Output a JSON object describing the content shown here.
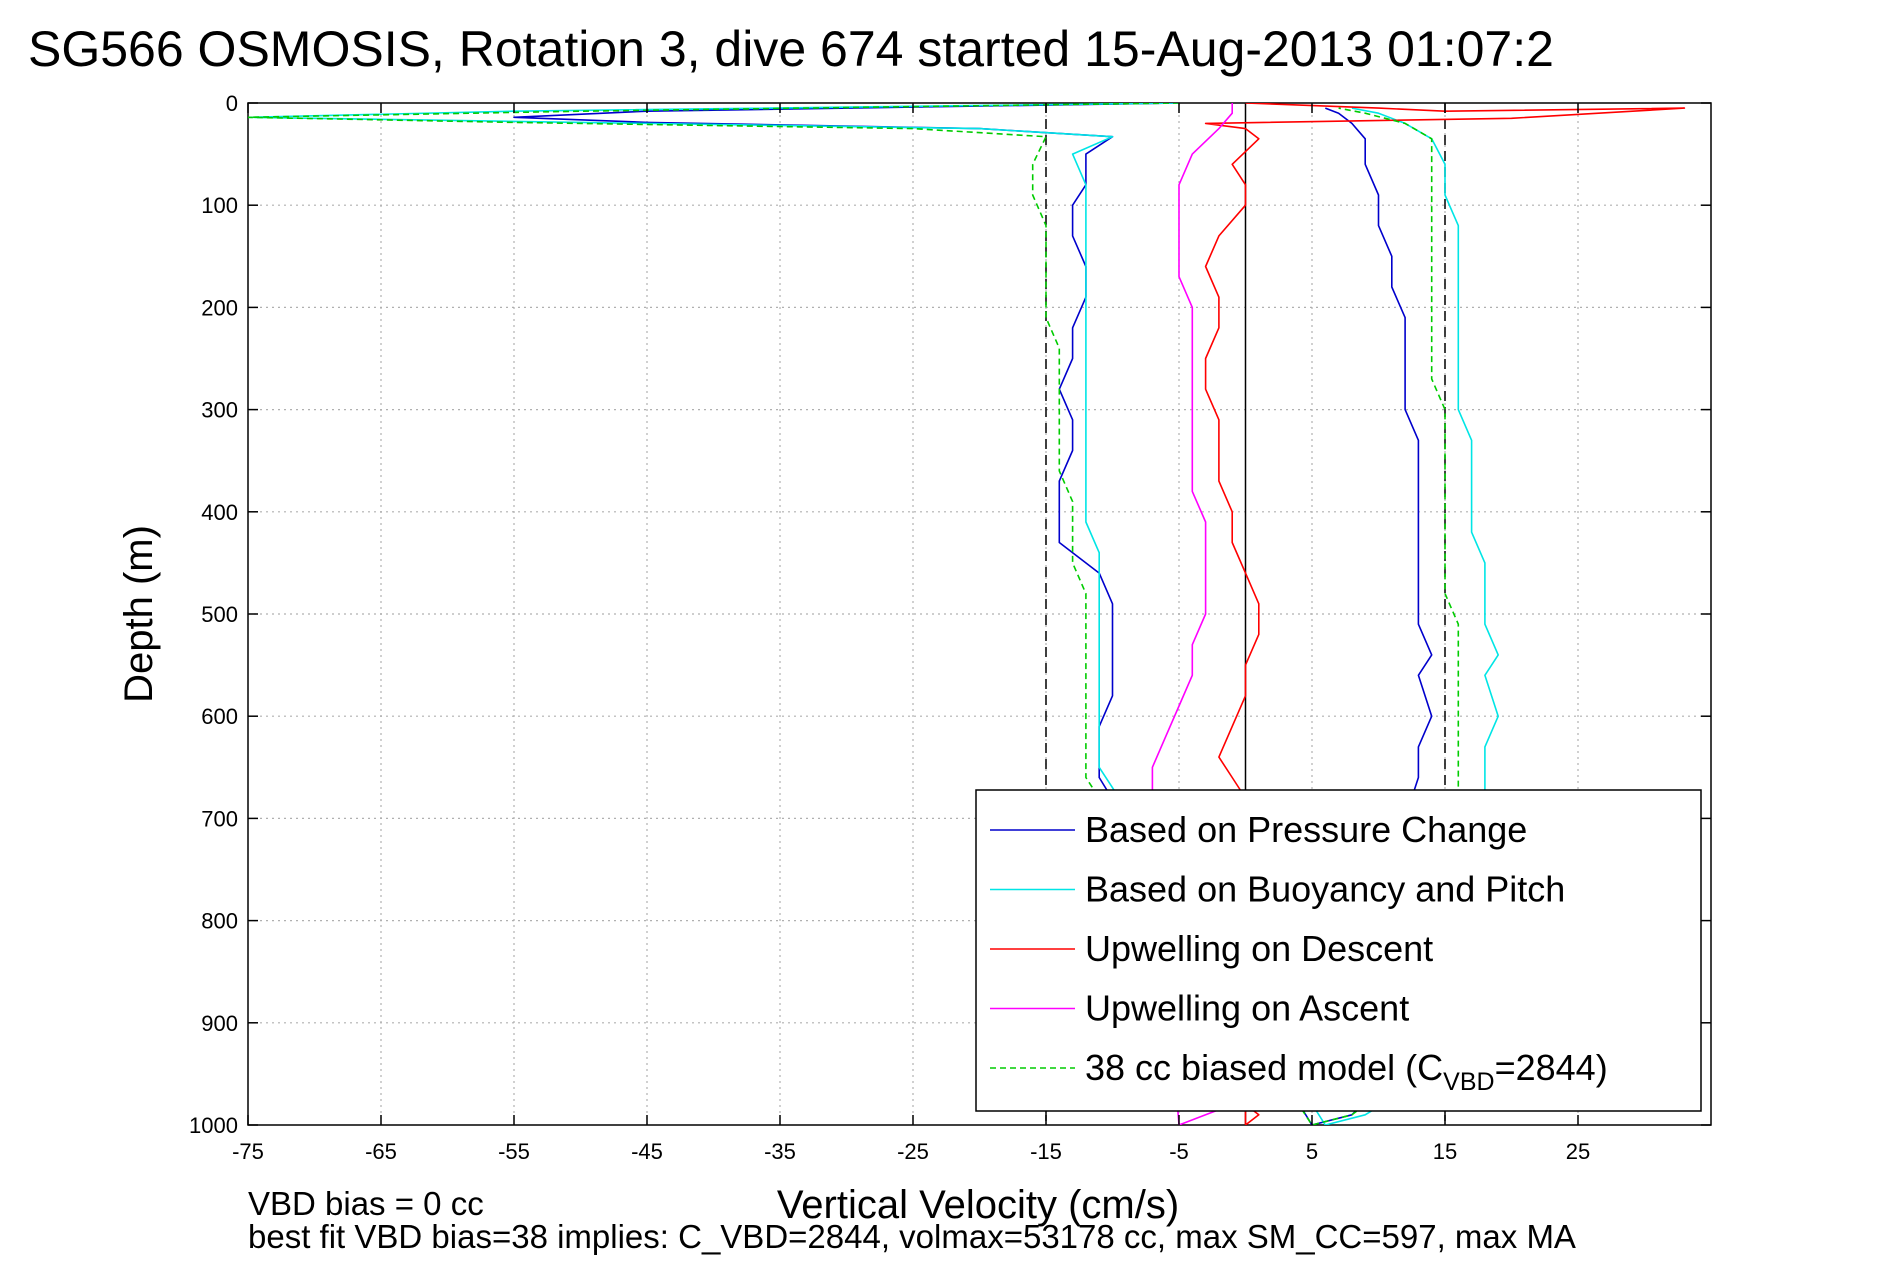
{
  "chart_data": {
    "type": "line",
    "title": "SG566 OSMOSIS, Rotation 3, dive 674 started 15-Aug-2013 01:07:2",
    "xlabel": "Vertical Velocity (cm/s)",
    "ylabel": "Depth (m)",
    "xlim": [
      -75,
      35
    ],
    "ylim": [
      0,
      1000
    ],
    "y_reversed": true,
    "grid": true,
    "x_ticks": [
      -75,
      -65,
      -55,
      -45,
      -35,
      -25,
      -15,
      -5,
      5,
      15,
      25
    ],
    "x_tick_labels": [
      "-75",
      "-65",
      "-55",
      "-45",
      "-35",
      "-25",
      "-15",
      "-5",
      "5",
      "15",
      "25"
    ],
    "y_ticks": [
      0,
      100,
      200,
      300,
      400,
      500,
      600,
      700,
      800,
      900,
      1000
    ],
    "y_tick_labels": [
      "0",
      "100",
      "200",
      "300",
      "400",
      "500",
      "600",
      "700",
      "800",
      "900",
      "1000"
    ],
    "reference_lines": [
      {
        "x": -15,
        "style": "dashed",
        "color": "#000000"
      },
      {
        "x": 0,
        "style": "solid",
        "color": "#000000"
      },
      {
        "x": 15,
        "style": "dashed",
        "color": "#000000"
      }
    ],
    "legend_position": "bottom-right",
    "series": [
      {
        "name": "Based on Pressure Change",
        "color": "#0000cc",
        "style": "solid",
        "points": [
          [
            -5,
            0
          ],
          [
            -45,
            8
          ],
          [
            -55,
            14
          ],
          [
            -45,
            19
          ],
          [
            -20,
            25
          ],
          [
            -10,
            33
          ],
          [
            -12,
            50
          ],
          [
            -12,
            80
          ],
          [
            -13,
            100
          ],
          [
            -13,
            130
          ],
          [
            -12,
            160
          ],
          [
            -12,
            190
          ],
          [
            -13,
            220
          ],
          [
            -13,
            250
          ],
          [
            -14,
            280
          ],
          [
            -13,
            310
          ],
          [
            -13,
            340
          ],
          [
            -14,
            370
          ],
          [
            -14,
            400
          ],
          [
            -14,
            430
          ],
          [
            -11,
            460
          ],
          [
            -10,
            490
          ],
          [
            -10,
            520
          ],
          [
            -10,
            550
          ],
          [
            -10,
            580
          ],
          [
            -11,
            610
          ],
          [
            -11,
            640
          ],
          [
            -11,
            660
          ],
          [
            5,
            1000
          ],
          [
            8,
            990
          ],
          [
            11,
            950
          ],
          [
            12,
            700
          ],
          [
            13,
            660
          ],
          [
            13,
            630
          ],
          [
            14,
            600
          ],
          [
            13,
            560
          ],
          [
            14,
            540
          ],
          [
            13,
            510
          ],
          [
            13,
            480
          ],
          [
            13,
            450
          ],
          [
            13,
            420
          ],
          [
            13,
            390
          ],
          [
            13,
            360
          ],
          [
            13,
            330
          ],
          [
            12,
            300
          ],
          [
            12,
            270
          ],
          [
            12,
            240
          ],
          [
            12,
            210
          ],
          [
            11,
            180
          ],
          [
            11,
            150
          ],
          [
            10,
            120
          ],
          [
            10,
            90
          ],
          [
            9,
            60
          ],
          [
            9,
            35
          ],
          [
            8,
            20
          ],
          [
            7,
            10
          ],
          [
            6,
            5
          ]
        ]
      },
      {
        "name": "Based on Buoyancy and Pitch",
        "color": "#00e5e5",
        "style": "solid",
        "points": [
          [
            -5,
            0
          ],
          [
            -55,
            8
          ],
          [
            -75,
            14
          ],
          [
            -50,
            19
          ],
          [
            -20,
            25
          ],
          [
            -10,
            33
          ],
          [
            -13,
            50
          ],
          [
            -12,
            80
          ],
          [
            -12,
            110
          ],
          [
            -12,
            140
          ],
          [
            -12,
            170
          ],
          [
            -12,
            200
          ],
          [
            -12,
            230
          ],
          [
            -12,
            260
          ],
          [
            -12,
            290
          ],
          [
            -12,
            320
          ],
          [
            -12,
            350
          ],
          [
            -12,
            380
          ],
          [
            -12,
            410
          ],
          [
            -11,
            440
          ],
          [
            -11,
            470
          ],
          [
            -11,
            500
          ],
          [
            -11,
            530
          ],
          [
            -11,
            560
          ],
          [
            -11,
            590
          ],
          [
            -11,
            620
          ],
          [
            -11,
            650
          ],
          [
            -10,
            670
          ],
          [
            6,
            1000
          ],
          [
            9,
            990
          ],
          [
            14,
            950
          ],
          [
            18,
            700
          ],
          [
            18,
            660
          ],
          [
            18,
            630
          ],
          [
            19,
            600
          ],
          [
            18,
            560
          ],
          [
            19,
            540
          ],
          [
            18,
            510
          ],
          [
            18,
            480
          ],
          [
            18,
            450
          ],
          [
            17,
            420
          ],
          [
            17,
            390
          ],
          [
            17,
            360
          ],
          [
            17,
            330
          ],
          [
            16,
            300
          ],
          [
            16,
            270
          ],
          [
            16,
            240
          ],
          [
            16,
            210
          ],
          [
            16,
            180
          ],
          [
            16,
            150
          ],
          [
            16,
            120
          ],
          [
            15,
            90
          ],
          [
            15,
            60
          ],
          [
            14,
            35
          ],
          [
            12,
            20
          ],
          [
            10,
            10
          ],
          [
            8,
            5
          ]
        ]
      },
      {
        "name": "Upwelling on Descent",
        "color": "#ff0000",
        "style": "solid",
        "points": [
          [
            0,
            0
          ],
          [
            10,
            5
          ],
          [
            15,
            8
          ],
          [
            33,
            5
          ],
          [
            20,
            15
          ],
          [
            -3,
            20
          ],
          [
            0,
            25
          ],
          [
            1,
            35
          ],
          [
            -1,
            60
          ],
          [
            0,
            80
          ],
          [
            0,
            100
          ],
          [
            -2,
            130
          ],
          [
            -3,
            160
          ],
          [
            -2,
            190
          ],
          [
            -2,
            220
          ],
          [
            -3,
            250
          ],
          [
            -3,
            280
          ],
          [
            -2,
            310
          ],
          [
            -2,
            340
          ],
          [
            -2,
            370
          ],
          [
            -1,
            400
          ],
          [
            -1,
            430
          ],
          [
            0,
            460
          ],
          [
            1,
            490
          ],
          [
            1,
            520
          ],
          [
            0,
            550
          ],
          [
            0,
            580
          ],
          [
            -1,
            610
          ],
          [
            -2,
            640
          ],
          [
            -1,
            660
          ],
          [
            0,
            680
          ],
          [
            0,
            1000
          ],
          [
            1,
            990
          ],
          [
            0,
            980
          ]
        ]
      },
      {
        "name": "Upwelling on Ascent",
        "color": "#ff00ff",
        "style": "solid",
        "points": [
          [
            -1,
            0
          ],
          [
            -1,
            10
          ],
          [
            -2,
            25
          ],
          [
            -4,
            50
          ],
          [
            -5,
            80
          ],
          [
            -5,
            110
          ],
          [
            -5,
            140
          ],
          [
            -5,
            170
          ],
          [
            -4,
            200
          ],
          [
            -4,
            230
          ],
          [
            -4,
            260
          ],
          [
            -4,
            290
          ],
          [
            -4,
            320
          ],
          [
            -4,
            350
          ],
          [
            -4,
            380
          ],
          [
            -3,
            410
          ],
          [
            -3,
            440
          ],
          [
            -3,
            470
          ],
          [
            -3,
            500
          ],
          [
            -4,
            530
          ],
          [
            -4,
            560
          ],
          [
            -5,
            590
          ],
          [
            -6,
            620
          ],
          [
            -7,
            650
          ],
          [
            -7,
            680
          ],
          [
            -5,
            1000
          ],
          [
            -3,
            990
          ],
          [
            -1,
            980
          ]
        ]
      },
      {
        "name": "38 cc biased model (C_VBD=2844)",
        "legend_text": "38 cc biased model (C",
        "legend_subscript": "VBD",
        "legend_suffix": "=2844)",
        "color": "#00cc00",
        "style": "dashed",
        "points": [
          [
            -5,
            0
          ],
          [
            -50,
            8
          ],
          [
            -75,
            14
          ],
          [
            -55,
            19
          ],
          [
            -25,
            25
          ],
          [
            -15,
            33
          ],
          [
            -16,
            60
          ],
          [
            -16,
            90
          ],
          [
            -15,
            120
          ],
          [
            -15,
            150
          ],
          [
            -15,
            180
          ],
          [
            -15,
            210
          ],
          [
            -14,
            240
          ],
          [
            -14,
            270
          ],
          [
            -14,
            300
          ],
          [
            -14,
            330
          ],
          [
            -14,
            360
          ],
          [
            -13,
            390
          ],
          [
            -13,
            420
          ],
          [
            -13,
            450
          ],
          [
            -12,
            480
          ],
          [
            -12,
            510
          ],
          [
            -12,
            540
          ],
          [
            -12,
            570
          ],
          [
            -12,
            600
          ],
          [
            -12,
            630
          ],
          [
            -12,
            660
          ],
          [
            -11,
            680
          ],
          [
            5,
            1000
          ],
          [
            8,
            990
          ],
          [
            12,
            950
          ],
          [
            16,
            700
          ],
          [
            16,
            660
          ],
          [
            16,
            630
          ],
          [
            16,
            600
          ],
          [
            16,
            570
          ],
          [
            16,
            540
          ],
          [
            16,
            510
          ],
          [
            15,
            480
          ],
          [
            15,
            450
          ],
          [
            15,
            420
          ],
          [
            15,
            390
          ],
          [
            15,
            360
          ],
          [
            15,
            330
          ],
          [
            15,
            300
          ],
          [
            14,
            270
          ],
          [
            14,
            240
          ],
          [
            14,
            210
          ],
          [
            14,
            180
          ],
          [
            14,
            150
          ],
          [
            14,
            120
          ],
          [
            14,
            90
          ],
          [
            14,
            60
          ],
          [
            14,
            35
          ],
          [
            12,
            20
          ],
          [
            9,
            10
          ],
          [
            7,
            5
          ]
        ]
      }
    ],
    "annotations": [
      "VBD bias = 0 cc",
      "best fit VBD bias=38 implies: C_VBD=2844, volmax=53178 cc, max SM_CC=597, max MA"
    ]
  }
}
